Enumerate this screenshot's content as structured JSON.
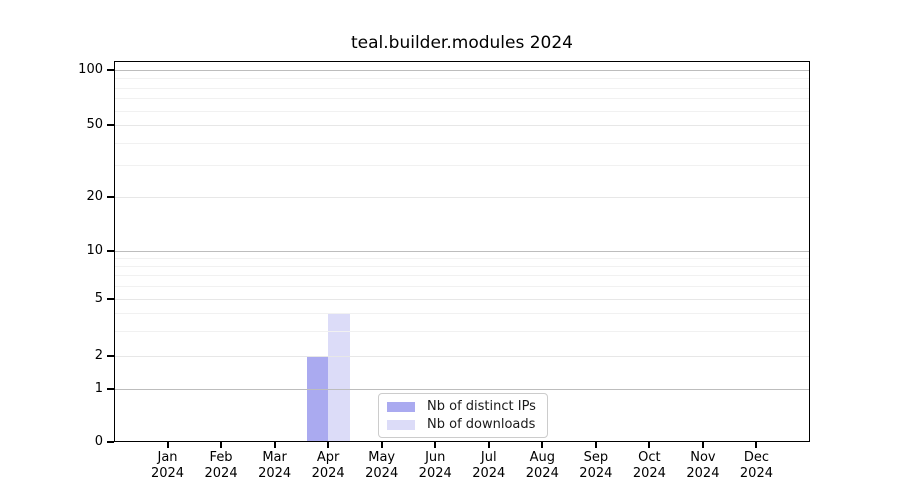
{
  "title": "teal.builder.modules 2024",
  "chart_data": {
    "type": "bar",
    "title": "teal.builder.modules 2024",
    "categories": [
      "Jan",
      "Feb",
      "Mar",
      "Apr",
      "May",
      "Jun",
      "Jul",
      "Aug",
      "Sep",
      "Oct",
      "Nov",
      "Dec"
    ],
    "year_label": "2024",
    "series": [
      {
        "name": "Nb of distinct IPs",
        "color": "#aaaaf0",
        "values": [
          0,
          0,
          0,
          2,
          0,
          0,
          0,
          0,
          0,
          0,
          0,
          0
        ]
      },
      {
        "name": "Nb of downloads",
        "color": "#dcdcf8",
        "values": [
          0,
          0,
          0,
          4,
          0,
          0,
          0,
          0,
          0,
          0,
          0,
          0
        ]
      }
    ],
    "yticks": [
      0,
      1,
      2,
      5,
      10,
      20,
      50,
      100
    ],
    "minor_yticks": [
      3,
      4,
      6,
      7,
      8,
      9,
      30,
      40,
      60,
      70,
      80,
      90
    ],
    "xlabel": "",
    "ylabel": "",
    "ylim": [
      0,
      100
    ],
    "scale": "symlog",
    "grid": true,
    "legend_position": "lower center (inside plot)"
  },
  "colors": {
    "bar_distinct_ips": "#aaaaf0",
    "bar_downloads": "#dcdcf8",
    "grid_decade": "#bdbdbd",
    "grid_major": "#e7e7e7",
    "grid_minor": "#f1f1f1",
    "axis": "#000000",
    "legend_border": "#cccccc",
    "background": "#ffffff"
  }
}
